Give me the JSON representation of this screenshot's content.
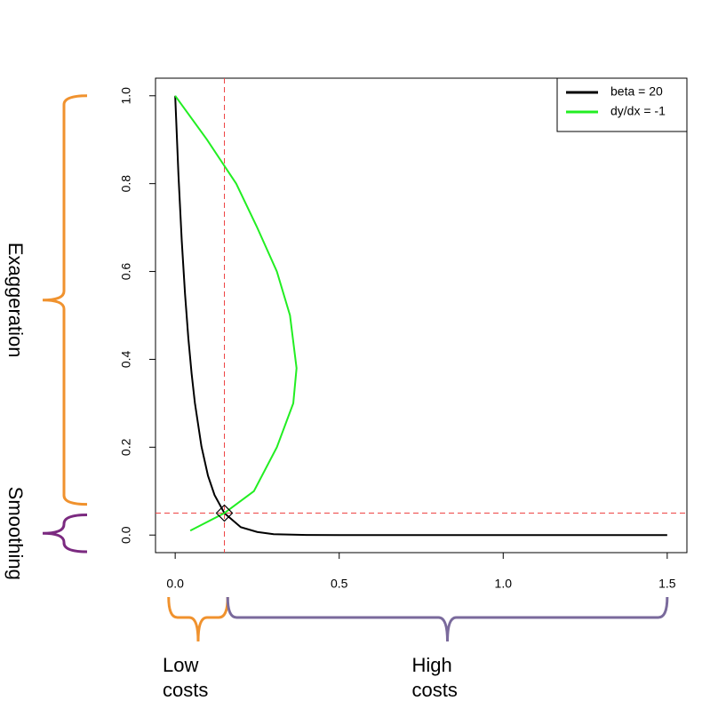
{
  "chart_data": {
    "type": "line",
    "xlim": [
      -0.06,
      1.56
    ],
    "ylim": [
      -0.04,
      1.04
    ],
    "xticks": [
      {
        "value": 0,
        "label": "0.0"
      },
      {
        "value": 0.5,
        "label": "0.5"
      },
      {
        "value": 1,
        "label": "1.0"
      },
      {
        "value": 1.5,
        "label": "1.5"
      }
    ],
    "yticks": [
      {
        "value": 0,
        "label": "0.0"
      },
      {
        "value": 0.2,
        "label": "0.2"
      },
      {
        "value": 0.4,
        "label": "0.4"
      },
      {
        "value": 0.6,
        "label": "0.6"
      },
      {
        "value": 0.8,
        "label": "0.8"
      },
      {
        "value": 1,
        "label": "1.0"
      }
    ],
    "series": [
      {
        "name": "beta = 20",
        "color": "#000000",
        "x": [
          0,
          0.01,
          0.02,
          0.03,
          0.04,
          0.05,
          0.06,
          0.08,
          0.1,
          0.12,
          0.15,
          0.2,
          0.25,
          0.3,
          0.4,
          0.5,
          1.5
        ],
        "values": [
          1,
          0.819,
          0.67,
          0.549,
          0.449,
          0.368,
          0.301,
          0.202,
          0.135,
          0.091,
          0.05,
          0.018,
          0.007,
          0.002,
          0.0003,
          0,
          0
        ]
      },
      {
        "name": "dy/dx = -1",
        "color": "#22ee22",
        "x": [
          0,
          0.097,
          0.186,
          0.25,
          0.31,
          0.35,
          0.37,
          0.36,
          0.31,
          0.24,
          0.15,
          0.046
        ],
        "values": [
          1,
          0.9,
          0.8,
          0.7,
          0.6,
          0.5,
          0.38,
          0.3,
          0.2,
          0.1,
          0.05,
          0.01
        ]
      }
    ],
    "legend": "top-right",
    "reference_lines": {
      "x": 0.15,
      "y": 0.05,
      "color": "#ee4444"
    },
    "marker": {
      "x": 0.15,
      "y": 0.05
    },
    "brackets": [
      {
        "label": "Exaggeration",
        "axis": "y",
        "range": [
          0.07,
          1.0
        ],
        "color": "#f0922e"
      },
      {
        "label": "Smoothing",
        "axis": "y",
        "range": [
          -0.038,
          0.046
        ],
        "color": "#7b2a80"
      },
      {
        "label": "Low costs",
        "axis": "x",
        "range": [
          -0.02,
          0.16
        ],
        "color": "#f0922e"
      },
      {
        "label": "High costs",
        "axis": "x",
        "range": [
          0.16,
          1.5
        ],
        "color": "#7a6a9c"
      }
    ]
  }
}
